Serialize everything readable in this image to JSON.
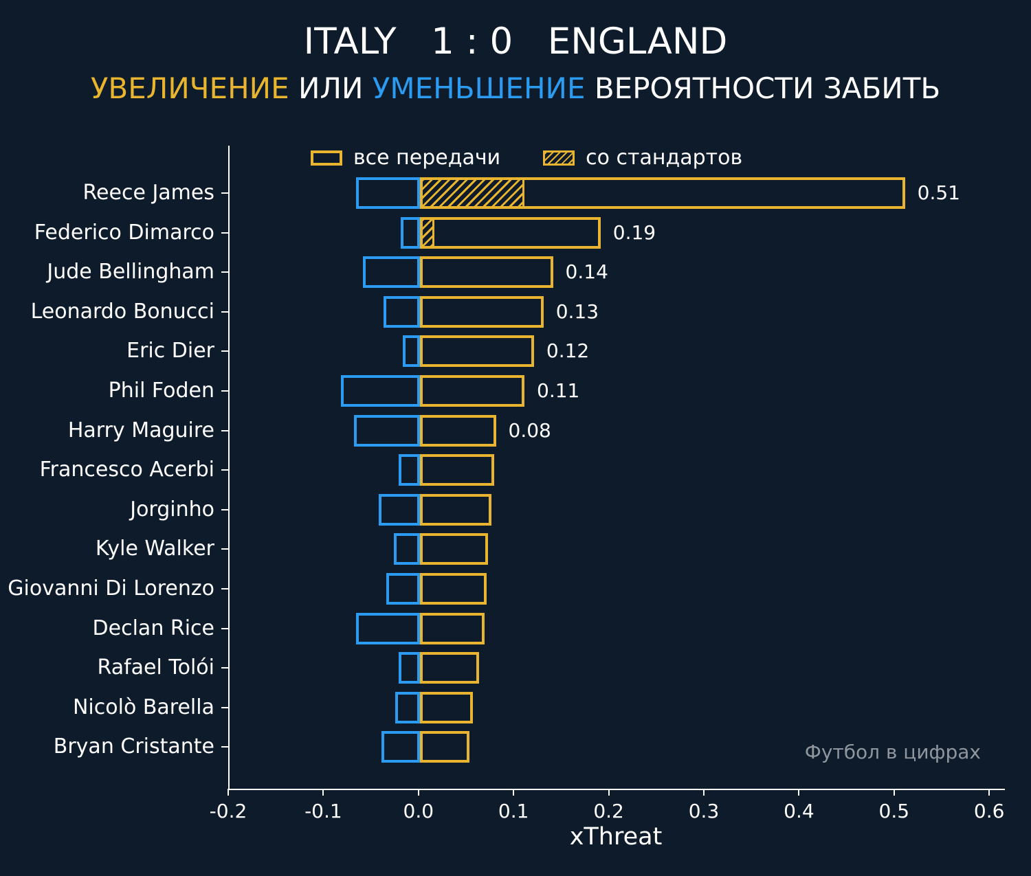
{
  "header": {
    "title": "ITALY   1 : 0   ENGLAND",
    "subtitle_parts": [
      {
        "text": "УВЕЛИЧЕНИЕ",
        "color": "#e9b42f"
      },
      {
        "text": " ИЛИ ",
        "color": "#ffffff"
      },
      {
        "text": "УМЕНЬШЕНИЕ",
        "color": "#2b9cf2"
      },
      {
        "text": " ВЕРОЯТНОСТИ ЗАБИТЬ",
        "color": "#ffffff"
      }
    ]
  },
  "legend": {
    "all_passes": "все передачи",
    "set_pieces": "со стандартов"
  },
  "watermark": "Футбол в цифрах",
  "chart_data": {
    "type": "bar",
    "orientation": "horizontal",
    "title": "УВЕЛИЧЕНИЕ ИЛИ УМЕНЬШЕНИЕ ВЕРОЯТНОСТИ ЗАБИТЬ",
    "xlabel": "xThreat",
    "xlim": [
      -0.2,
      0.6
    ],
    "xticks": [
      -0.2,
      -0.1,
      0.0,
      0.1,
      0.2,
      0.3,
      0.4,
      0.5,
      0.6
    ],
    "xtick_labels": [
      "-0.2",
      "-0.1",
      "0.0",
      "0.1",
      "0.2",
      "0.3",
      "0.4",
      "0.5",
      "0.6"
    ],
    "grid": false,
    "legend_position": "top-inside",
    "colors": {
      "increase": "#e9b42f",
      "decrease": "#2b9cf2",
      "background": "#0d1b2a",
      "watermark": "#8f969d"
    },
    "players": [
      {
        "name": "Reece James",
        "all_passes": 0.51,
        "decrease": -0.067,
        "set_pieces": 0.11,
        "label": "0.51"
      },
      {
        "name": "Federico Dimarco",
        "all_passes": 0.19,
        "decrease": -0.02,
        "set_pieces": 0.015,
        "label": "0.19"
      },
      {
        "name": "Jude Bellingham",
        "all_passes": 0.14,
        "decrease": -0.06,
        "set_pieces": 0,
        "label": "0.14"
      },
      {
        "name": "Leonardo Bonucci",
        "all_passes": 0.13,
        "decrease": -0.038,
        "set_pieces": 0,
        "label": "0.13"
      },
      {
        "name": "Eric Dier",
        "all_passes": 0.12,
        "decrease": -0.018,
        "set_pieces": 0,
        "label": "0.12"
      },
      {
        "name": "Phil Foden",
        "all_passes": 0.11,
        "decrease": -0.083,
        "set_pieces": 0,
        "label": "0.11"
      },
      {
        "name": "Harry Maguire",
        "all_passes": 0.08,
        "decrease": -0.069,
        "set_pieces": 0,
        "label": "0.08"
      },
      {
        "name": "Francesco Acerbi",
        "all_passes": 0.078,
        "decrease": -0.022,
        "set_pieces": 0,
        "label": ""
      },
      {
        "name": "Jorginho",
        "all_passes": 0.075,
        "decrease": -0.043,
        "set_pieces": 0,
        "label": ""
      },
      {
        "name": "Kyle Walker",
        "all_passes": 0.072,
        "decrease": -0.027,
        "set_pieces": 0,
        "label": ""
      },
      {
        "name": "Giovanni Di Lorenzo",
        "all_passes": 0.07,
        "decrease": -0.035,
        "set_pieces": 0,
        "label": ""
      },
      {
        "name": "Declan Rice",
        "all_passes": 0.068,
        "decrease": -0.067,
        "set_pieces": 0,
        "label": ""
      },
      {
        "name": "Rafael Tolói",
        "all_passes": 0.062,
        "decrease": -0.022,
        "set_pieces": 0,
        "label": ""
      },
      {
        "name": "Nicolò Barella",
        "all_passes": 0.056,
        "decrease": -0.026,
        "set_pieces": 0,
        "label": ""
      },
      {
        "name": "Bryan Cristante",
        "all_passes": 0.052,
        "decrease": -0.04,
        "set_pieces": 0,
        "label": ""
      }
    ]
  }
}
